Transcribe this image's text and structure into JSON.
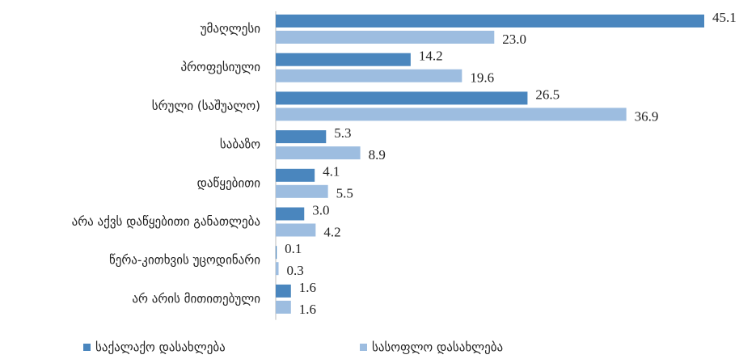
{
  "chart_data": {
    "type": "bar",
    "orientation": "horizontal",
    "categories": [
      "უმაღლესი",
      "პროფესიული",
      "სრული (საშუალო)",
      "საბაზო",
      "დაწყებითი",
      "არა აქვს დაწყებითი განათლება",
      "წერა-კითხვის უცოდინარი",
      "არ არის მითითებული"
    ],
    "series": [
      {
        "name": "საქალაქო დასახლება",
        "color": "#4a86be",
        "values": [
          45.1,
          14.2,
          26.5,
          5.3,
          4.1,
          3.0,
          0.1,
          1.6
        ],
        "value_labels": [
          "45.1",
          "14.2",
          "26.5",
          "5.3",
          "4.1",
          "3.0",
          "0.1",
          "1.6"
        ]
      },
      {
        "name": "სასოფლო დასახლება",
        "color": "#9dbde0",
        "values": [
          23.0,
          19.6,
          36.9,
          8.9,
          5.5,
          4.2,
          0.3,
          1.6
        ],
        "value_labels": [
          "23.0",
          "19.6",
          "36.9",
          "8.9",
          "5.5",
          "4.2",
          "0.3",
          "1.6"
        ]
      }
    ],
    "legend": "bottom"
  }
}
